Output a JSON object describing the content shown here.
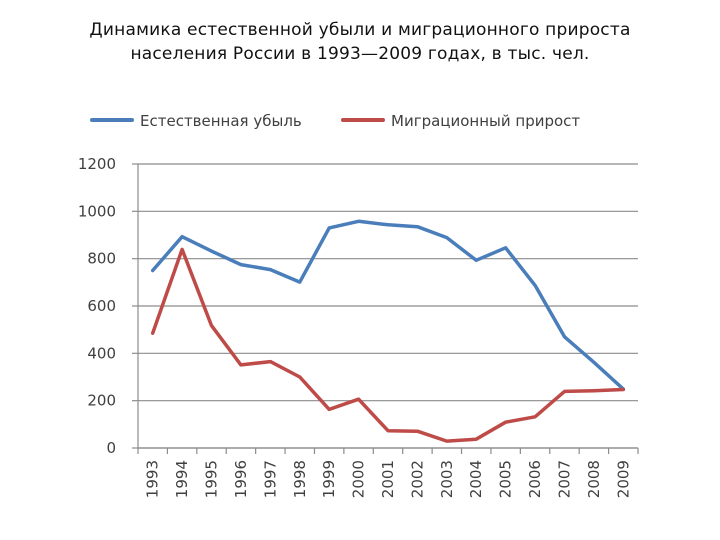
{
  "title": {
    "line1": "Динамика естественной убыли и миграционного прироста",
    "line2": "населения России в 1993—2009 годах, в тыс. чел."
  },
  "chart_data": {
    "type": "line",
    "title": "Динамика естественной убыли и миграционного прироста населения России в 1993—2009 годах, в тыс. чел.",
    "categories": [
      "1993",
      "1994",
      "1995",
      "1996",
      "1997",
      "1998",
      "1999",
      "2000",
      "2001",
      "2002",
      "2003",
      "2004",
      "2005",
      "2006",
      "2007",
      "2008",
      "2009"
    ],
    "series": [
      {
        "name": "Естественная убыль",
        "color": "#4a7ebb",
        "values": [
          750,
          893,
          832,
          775,
          754,
          701,
          930,
          958,
          943,
          935,
          889,
          793,
          846,
          687,
          470,
          362,
          249
        ]
      },
      {
        "name": "Миграционный прирост",
        "color": "#be4b48",
        "values": [
          485,
          839,
          517,
          351,
          365,
          300,
          163,
          206,
          73,
          71,
          29,
          37,
          109,
          132,
          239,
          242,
          247
        ]
      }
    ],
    "ylim": [
      0,
      1200
    ],
    "yticks": [
      0,
      200,
      400,
      600,
      800,
      1000,
      1200
    ],
    "grid": true,
    "legend": "top"
  }
}
